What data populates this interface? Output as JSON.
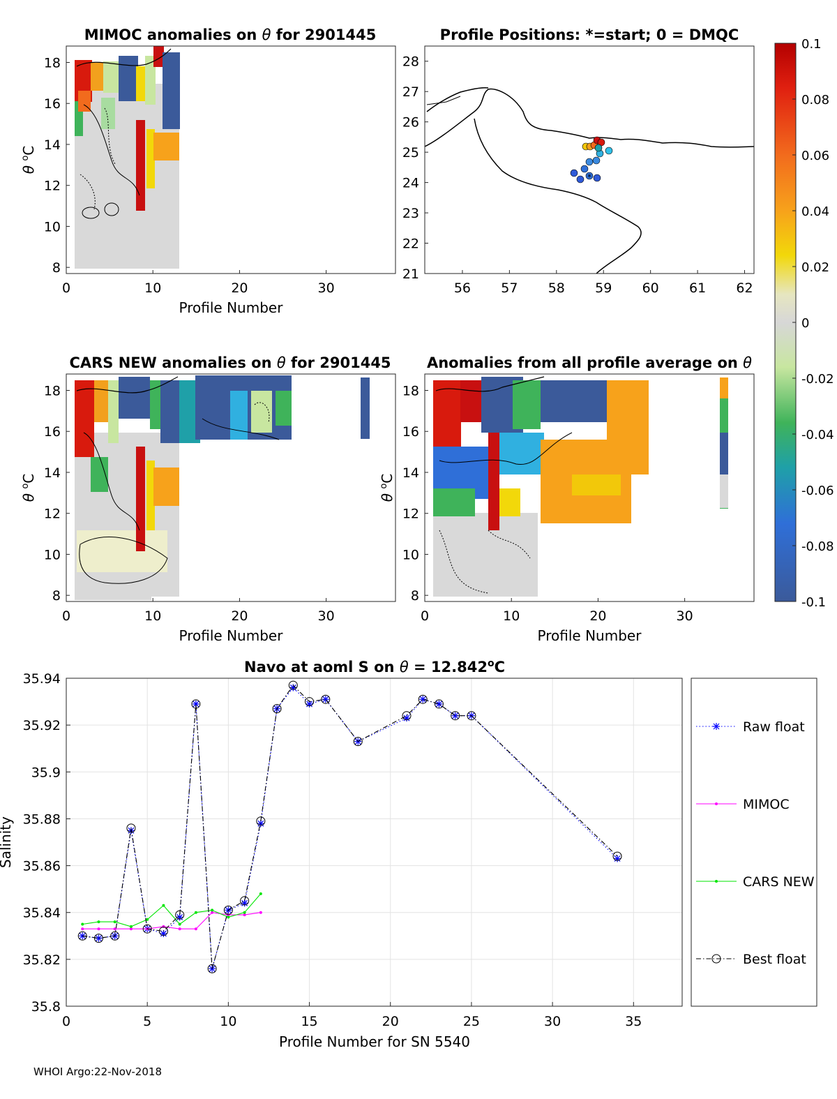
{
  "footer": "WHOI Argo:22-Nov-2018",
  "panels": {
    "mimoc": {
      "title_prefix": "MIMOC anomalies on ",
      "title_theta": "θ",
      "title_suffix": " for 2901445",
      "xlabel": "Profile Number",
      "ylabel_theta": "θ",
      "ylabel_unit": "C",
      "ylabel_sup": "o",
      "xticks": [
        "0",
        "10",
        "20",
        "30"
      ],
      "yticks": [
        "8",
        "10",
        "12",
        "14",
        "16",
        "18"
      ]
    },
    "positions": {
      "title": "Profile Positions: *=start; 0 = DMQC",
      "xticks": [
        "56",
        "57",
        "58",
        "59",
        "60",
        "61",
        "62"
      ],
      "yticks": [
        "21",
        "22",
        "23",
        "24",
        "25",
        "26",
        "27",
        "28"
      ]
    },
    "cars": {
      "title_prefix": "CARS NEW anomalies on ",
      "title_theta": "θ",
      "title_suffix": " for 2901445",
      "xlabel": "Profile Number",
      "ylabel_theta": "θ",
      "ylabel_unit": "C",
      "ylabel_sup": "o",
      "xticks": [
        "0",
        "10",
        "20",
        "30"
      ],
      "yticks": [
        "8",
        "10",
        "12",
        "14",
        "16",
        "18"
      ]
    },
    "allavg": {
      "title_prefix": "Anomalies from all profile average on ",
      "title_theta": "θ",
      "xlabel": "Profile Number",
      "ylabel_theta": "θ",
      "ylabel_unit": "C",
      "ylabel_sup": "o",
      "xticks": [
        "0",
        "10",
        "20",
        "30"
      ],
      "yticks": [
        "8",
        "10",
        "12",
        "14",
        "16",
        "18"
      ]
    },
    "colorbar": {
      "ticks": [
        "0.1",
        "0.08",
        "0.06",
        "0.04",
        "0.02",
        "0",
        "-0.02",
        "-0.04",
        "-0.06",
        "-0.08",
        "-0.1"
      ]
    }
  },
  "chart_data": {
    "type": "line",
    "title_prefix": "Navo at aoml S on ",
    "title_theta": "θ",
    "title_value": " = 12.842",
    "title_sup": "o",
    "title_unit": "C",
    "xlabel": "Profile Number for SN 5540",
    "ylabel": "Salinity",
    "xlim": [
      0,
      38
    ],
    "ylim": [
      35.8,
      35.94
    ],
    "xticks": [
      "0",
      "5",
      "10",
      "15",
      "20",
      "25",
      "30",
      "35"
    ],
    "yticks": [
      "35.8",
      "35.82",
      "35.84",
      "35.86",
      "35.88",
      "35.9",
      "35.92",
      "35.94"
    ],
    "grid": true,
    "legend_position": "right-outside",
    "series": [
      {
        "name": "Raw float",
        "color": "#0000ff",
        "style": "dotted-star",
        "x": [
          1,
          2,
          3,
          4,
          5,
          6,
          7,
          8,
          9,
          10,
          11,
          12,
          13,
          14,
          15,
          16,
          18,
          21,
          22,
          23,
          24,
          25,
          34
        ],
        "y": [
          35.83,
          35.829,
          35.83,
          35.875,
          35.833,
          35.831,
          35.838,
          35.929,
          35.816,
          35.841,
          35.844,
          35.878,
          35.927,
          35.936,
          35.929,
          35.931,
          35.913,
          35.923,
          35.931,
          35.929,
          35.924,
          35.924,
          35.863
        ]
      },
      {
        "name": "MIMOC",
        "color": "#ff00ff",
        "style": "solid-dot",
        "x": [
          1,
          2,
          3,
          4,
          5,
          6,
          7,
          8,
          9,
          10,
          11,
          12
        ],
        "y": [
          35.833,
          35.833,
          35.833,
          35.833,
          35.833,
          35.834,
          35.833,
          35.833,
          35.84,
          35.839,
          35.839,
          35.84
        ]
      },
      {
        "name": "CARS NEW",
        "color": "#00e600",
        "style": "solid-dot",
        "x": [
          1,
          2,
          3,
          4,
          5,
          6,
          7,
          8,
          9,
          10,
          11,
          12
        ],
        "y": [
          35.835,
          35.836,
          35.836,
          35.834,
          35.837,
          35.843,
          35.835,
          35.84,
          35.841,
          35.838,
          35.84,
          35.848
        ]
      },
      {
        "name": "Best float",
        "color": "#000000",
        "style": "dashdot-circle",
        "x": [
          1,
          2,
          3,
          4,
          5,
          6,
          7,
          8,
          9,
          10,
          11,
          12,
          13,
          14,
          15,
          16,
          18,
          21,
          22,
          23,
          24,
          25,
          34
        ],
        "y": [
          35.83,
          35.829,
          35.83,
          35.876,
          35.833,
          35.832,
          35.839,
          35.929,
          35.816,
          35.841,
          35.845,
          35.879,
          35.927,
          35.937,
          35.93,
          35.931,
          35.913,
          35.924,
          35.931,
          35.929,
          35.924,
          35.924,
          35.864
        ]
      }
    ]
  }
}
